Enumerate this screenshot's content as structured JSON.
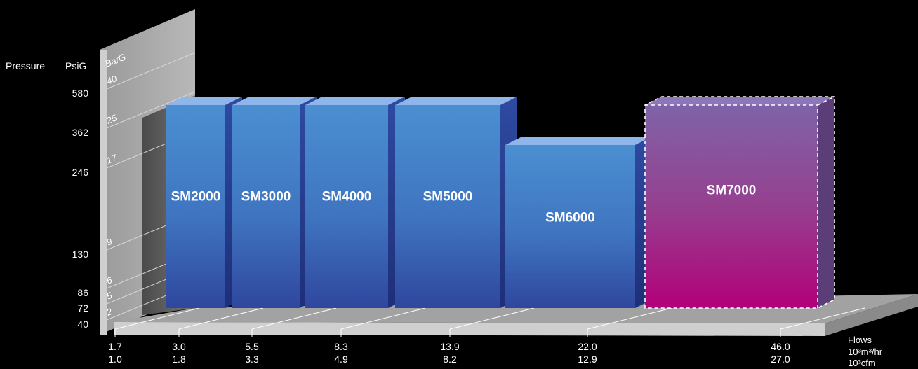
{
  "chart_data": {
    "type": "bar",
    "axis_titles": {
      "pressure": "Pressure",
      "psig": "PsiG",
      "barg": "BarG",
      "flows": "Flows",
      "flow_unit_1": "10³m³/hr",
      "flow_unit_2": "10³cfm"
    },
    "psig_ticks": [
      {
        "value": 580,
        "label": "580"
      },
      {
        "value": 362,
        "label": "362"
      },
      {
        "value": 246,
        "label": "246"
      },
      {
        "value": 130,
        "label": "130"
      },
      {
        "value": 86,
        "label": "86"
      },
      {
        "value": 72,
        "label": "72"
      },
      {
        "value": 40,
        "label": "40"
      }
    ],
    "barg_ticks": [
      {
        "value": 40,
        "label": "40"
      },
      {
        "value": 25,
        "label": "25"
      },
      {
        "value": 17,
        "label": "17"
      },
      {
        "value": 9,
        "label": "9"
      },
      {
        "value": 6,
        "label": "6"
      },
      {
        "value": 5,
        "label": "5"
      },
      {
        "value": 2,
        "label": "2"
      }
    ],
    "flow_ticks": [
      {
        "m3hr": "1.7",
        "cfm": "1.0"
      },
      {
        "m3hr": "3.0",
        "cfm": "1.8"
      },
      {
        "m3hr": "5.5",
        "cfm": "3.3"
      },
      {
        "m3hr": "8.3",
        "cfm": "4.9"
      },
      {
        "m3hr": "13.9",
        "cfm": "8.2"
      },
      {
        "m3hr": "22.0",
        "cfm": "12.9"
      },
      {
        "m3hr": "46.0",
        "cfm": "27.0"
      }
    ],
    "series": [
      {
        "label": "SM2000",
        "flow_from": 1.7,
        "flow_to": 3.0,
        "max_psig": 362,
        "style": "current"
      },
      {
        "label": "SM3000",
        "flow_from": 3.0,
        "flow_to": 5.5,
        "max_psig": 362,
        "style": "current"
      },
      {
        "label": "SM4000",
        "flow_from": 5.5,
        "flow_to": 8.3,
        "max_psig": 362,
        "style": "current"
      },
      {
        "label": "SM5000",
        "flow_from": 8.3,
        "flow_to": 13.9,
        "max_psig": 362,
        "style": "current"
      },
      {
        "label": "SM6000",
        "flow_from": 13.9,
        "flow_to": 22.0,
        "max_psig": 246,
        "style": "current"
      },
      {
        "label": "SM7000",
        "flow_from": 22.0,
        "flow_to": 46.0,
        "max_psig": 362,
        "style": "new"
      }
    ],
    "colors": {
      "current_top": "#4b8fd1",
      "current_bottom": "#2f479e",
      "new_top": "#7f63a8",
      "new_bottom": "#b3007a"
    }
  }
}
